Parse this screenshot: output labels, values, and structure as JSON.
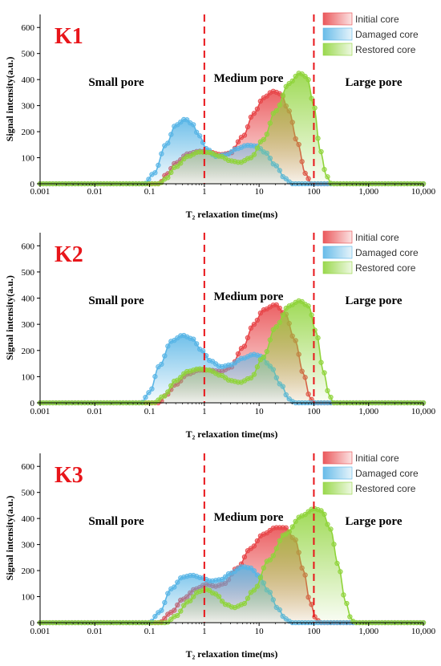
{
  "chart_data": [
    {
      "type": "line",
      "panel_label": "K1",
      "xlabel": "T₂ relaxation time(ms)",
      "ylabel": "Signal intensity(a.u.)",
      "xscale": "log",
      "xlim": [
        0.001,
        10000
      ],
      "ylim": [
        0,
        650
      ],
      "xticks": [
        "0.001",
        "0.01",
        "0.1",
        "1",
        "10",
        "100",
        "1,000",
        "10,000"
      ],
      "yticks": [
        "0",
        "100",
        "200",
        "300",
        "400",
        "500",
        "600"
      ],
      "region_labels": [
        "Small pore",
        "Medium pore",
        "Large pore"
      ],
      "dividers": [
        1,
        100
      ],
      "legend": {
        "position": "top-right",
        "entries": [
          "Initial core",
          "Damaged core",
          "Restored core"
        ]
      },
      "series": [
        {
          "name": "Initial core",
          "color": "#e8474a",
          "points": [
            [
              0.15,
              0
            ],
            [
              0.2,
              35
            ],
            [
              0.3,
              80
            ],
            [
              0.5,
              115
            ],
            [
              0.8,
              125
            ],
            [
              1.2,
              122
            ],
            [
              2,
              112
            ],
            [
              3,
              118
            ],
            [
              5,
              180
            ],
            [
              8,
              270
            ],
            [
              12,
              330
            ],
            [
              18,
              355
            ],
            [
              25,
              345
            ],
            [
              35,
              280
            ],
            [
              50,
              160
            ],
            [
              70,
              40
            ],
            [
              90,
              0
            ]
          ]
        },
        {
          "name": "Damaged core",
          "color": "#58b5e6",
          "points": [
            [
              0.08,
              0
            ],
            [
              0.12,
              40
            ],
            [
              0.2,
              150
            ],
            [
              0.3,
              225
            ],
            [
              0.45,
              248
            ],
            [
              0.6,
              230
            ],
            [
              0.8,
              185
            ],
            [
              1.1,
              135
            ],
            [
              1.6,
              105
            ],
            [
              2.5,
              112
            ],
            [
              4,
              135
            ],
            [
              6,
              148
            ],
            [
              9,
              145
            ],
            [
              13,
              120
            ],
            [
              20,
              70
            ],
            [
              30,
              20
            ],
            [
              40,
              0
            ]
          ]
        },
        {
          "name": "Restored core",
          "color": "#8fd43a",
          "points": [
            [
              0.15,
              0
            ],
            [
              0.2,
              20
            ],
            [
              0.3,
              65
            ],
            [
              0.5,
              105
            ],
            [
              0.8,
              122
            ],
            [
              1.2,
              120
            ],
            [
              2,
              105
            ],
            [
              3,
              88
            ],
            [
              4.5,
              82
            ],
            [
              7,
              100
            ],
            [
              12,
              170
            ],
            [
              20,
              280
            ],
            [
              35,
              385
            ],
            [
              55,
              425
            ],
            [
              75,
              410
            ],
            [
              100,
              300
            ],
            [
              130,
              130
            ],
            [
              170,
              30
            ],
            [
              210,
              0
            ]
          ]
        }
      ]
    },
    {
      "type": "line",
      "panel_label": "K2",
      "xlabel": "T₂ relaxation time(ms)",
      "ylabel": "Signal intensity(a.u.)",
      "xscale": "log",
      "xlim": [
        0.001,
        10000
      ],
      "ylim": [
        0,
        650
      ],
      "xticks": [
        "0.001",
        "0.01",
        "0.1",
        "1",
        "10",
        "100",
        "1,000",
        "10,000"
      ],
      "yticks": [
        "0",
        "100",
        "200",
        "300",
        "400",
        "500",
        "600"
      ],
      "region_labels": [
        "Small pore",
        "Medium pore",
        "Large pore"
      ],
      "dividers": [
        1,
        100
      ],
      "legend": {
        "position": "top-right",
        "entries": [
          "Initial core",
          "Damaged core",
          "Restored core"
        ]
      },
      "series": [
        {
          "name": "Initial core",
          "color": "#e8474a",
          "points": [
            [
              0.15,
              0
            ],
            [
              0.2,
              30
            ],
            [
              0.3,
              70
            ],
            [
              0.5,
              110
            ],
            [
              0.8,
              125
            ],
            [
              1.2,
              125
            ],
            [
              2,
              120
            ],
            [
              3,
              135
            ],
            [
              5,
              210
            ],
            [
              8,
              300
            ],
            [
              12,
              355
            ],
            [
              20,
              375
            ],
            [
              30,
              340
            ],
            [
              45,
              240
            ],
            [
              65,
              110
            ],
            [
              85,
              20
            ],
            [
              100,
              0
            ]
          ]
        },
        {
          "name": "Damaged core",
          "color": "#58b5e6",
          "points": [
            [
              0.07,
              0
            ],
            [
              0.1,
              40
            ],
            [
              0.15,
              140
            ],
            [
              0.25,
              235
            ],
            [
              0.4,
              258
            ],
            [
              0.6,
              245
            ],
            [
              0.9,
              200
            ],
            [
              1.3,
              160
            ],
            [
              2,
              138
            ],
            [
              3,
              145
            ],
            [
              5,
              170
            ],
            [
              8,
              185
            ],
            [
              11,
              178
            ],
            [
              16,
              140
            ],
            [
              25,
              70
            ],
            [
              35,
              15
            ],
            [
              45,
              0
            ]
          ]
        },
        {
          "name": "Restored core",
          "color": "#8fd43a",
          "points": [
            [
              0.12,
              0
            ],
            [
              0.18,
              25
            ],
            [
              0.3,
              85
            ],
            [
              0.5,
              120
            ],
            [
              0.8,
              130
            ],
            [
              1.2,
              125
            ],
            [
              2,
              105
            ],
            [
              3,
              85
            ],
            [
              4.5,
              78
            ],
            [
              7,
              95
            ],
            [
              12,
              175
            ],
            [
              20,
              290
            ],
            [
              35,
              370
            ],
            [
              55,
              390
            ],
            [
              80,
              370
            ],
            [
              110,
              270
            ],
            [
              150,
              120
            ],
            [
              190,
              30
            ],
            [
              230,
              0
            ]
          ]
        }
      ]
    },
    {
      "type": "line",
      "panel_label": "K3",
      "xlabel": "T₂ relaxation time(ms)",
      "ylabel": "Signal intensity(a.u.)",
      "xscale": "log",
      "xlim": [
        0.001,
        10000
      ],
      "ylim": [
        0,
        650
      ],
      "xticks": [
        "0.001",
        "0.01",
        "0.1",
        "1",
        "10",
        "100",
        "1,000",
        "10,000"
      ],
      "yticks": [
        "0",
        "100",
        "200",
        "300",
        "400",
        "500",
        "600"
      ],
      "region_labels": [
        "Small pore",
        "Medium pore",
        "Large pore"
      ],
      "dividers": [
        1,
        100
      ],
      "legend": {
        "position": "top-right",
        "entries": [
          "Initial core",
          "Damaged core",
          "Restored core"
        ]
      },
      "series": [
        {
          "name": "Initial core",
          "color": "#e8474a",
          "points": [
            [
              0.15,
              0
            ],
            [
              0.25,
              40
            ],
            [
              0.4,
              90
            ],
            [
              0.7,
              130
            ],
            [
              1.1,
              148
            ],
            [
              1.6,
              140
            ],
            [
              2.3,
              150
            ],
            [
              4,
              210
            ],
            [
              7,
              285
            ],
            [
              12,
              340
            ],
            [
              20,
              365
            ],
            [
              30,
              365
            ],
            [
              45,
              320
            ],
            [
              65,
              200
            ],
            [
              85,
              80
            ],
            [
              110,
              15
            ],
            [
              130,
              0
            ]
          ]
        },
        {
          "name": "Damaged core",
          "color": "#58b5e6",
          "points": [
            [
              0.1,
              0
            ],
            [
              0.15,
              40
            ],
            [
              0.25,
              130
            ],
            [
              0.4,
              175
            ],
            [
              0.6,
              182
            ],
            [
              0.9,
              172
            ],
            [
              1.3,
              160
            ],
            [
              2,
              165
            ],
            [
              3,
              190
            ],
            [
              5,
              215
            ],
            [
              7,
              210
            ],
            [
              10,
              180
            ],
            [
              15,
              120
            ],
            [
              22,
              55
            ],
            [
              30,
              15
            ],
            [
              40,
              0
            ]
          ]
        },
        {
          "name": "Restored core",
          "color": "#8fd43a",
          "points": [
            [
              0.2,
              0
            ],
            [
              0.3,
              25
            ],
            [
              0.5,
              80
            ],
            [
              0.8,
              120
            ],
            [
              1.1,
              128
            ],
            [
              1.6,
              110
            ],
            [
              2.5,
              70
            ],
            [
              3.5,
              58
            ],
            [
              5,
              70
            ],
            [
              8,
              125
            ],
            [
              15,
              240
            ],
            [
              30,
              340
            ],
            [
              60,
              410
            ],
            [
              100,
              438
            ],
            [
              140,
              430
            ],
            [
              200,
              360
            ],
            [
              280,
              220
            ],
            [
              380,
              80
            ],
            [
              480,
              15
            ],
            [
              550,
              0
            ]
          ]
        }
      ]
    }
  ]
}
